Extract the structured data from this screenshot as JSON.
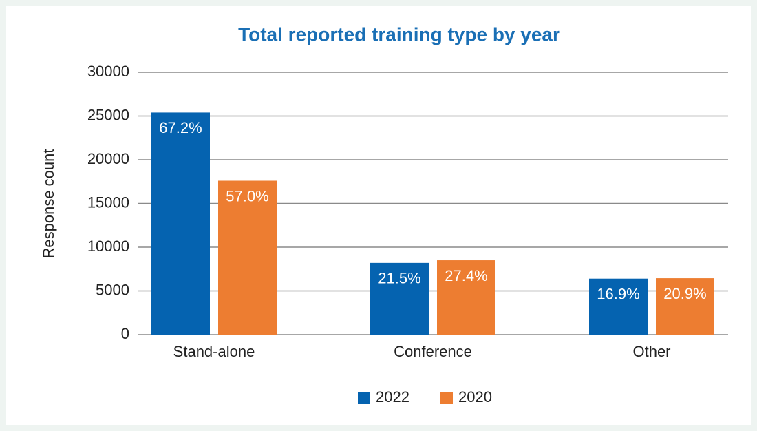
{
  "chart_data": {
    "type": "bar",
    "title": "Total reported training type by year",
    "y_label": "Response count",
    "categories": [
      "Stand-alone",
      "Conference",
      "Other"
    ],
    "series": [
      {
        "name": "2022",
        "color": "#0563b0",
        "values": [
          25400,
          8200,
          6400
        ],
        "labels": [
          "67.2%",
          "21.5%",
          "16.9%"
        ]
      },
      {
        "name": "2020",
        "color": "#ed7d31",
        "values": [
          17600,
          8500,
          6450
        ],
        "labels": [
          "57.0%",
          "27.4%",
          "20.9%"
        ]
      }
    ],
    "ylim": [
      0,
      30000
    ],
    "yticks": [
      0,
      5000,
      10000,
      15000,
      20000,
      25000,
      30000
    ],
    "grid": true,
    "legend": "bottom"
  }
}
